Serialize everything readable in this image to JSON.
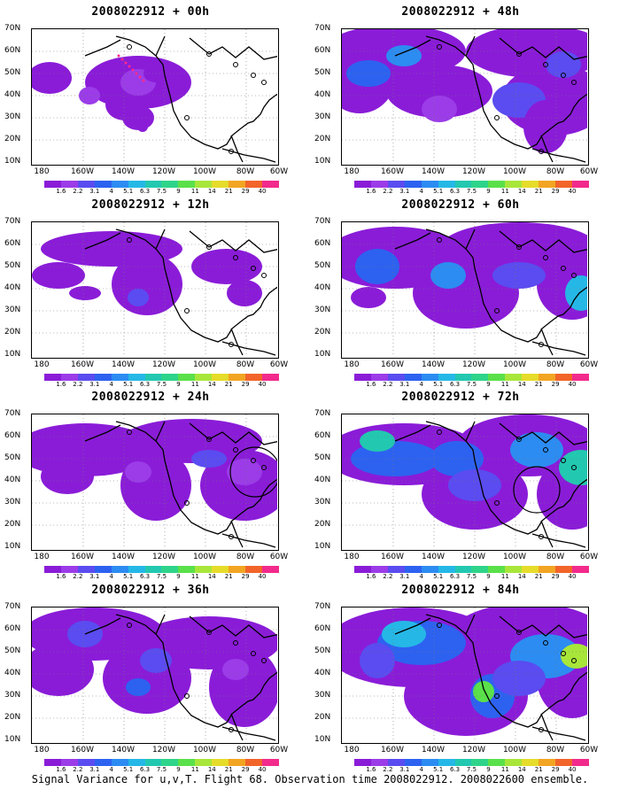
{
  "panels": [
    {
      "id": "p00",
      "title": "2008022912 + 00h"
    },
    {
      "id": "p48",
      "title": "2008022912 + 48h"
    },
    {
      "id": "p12",
      "title": "2008022912 + 12h"
    },
    {
      "id": "p60",
      "title": "2008022912 + 60h"
    },
    {
      "id": "p24",
      "title": "2008022912 + 24h"
    },
    {
      "id": "p72",
      "title": "2008022912 + 72h"
    },
    {
      "id": "p36",
      "title": "2008022912 + 36h"
    },
    {
      "id": "p84",
      "title": "2008022912 + 84h"
    }
  ],
  "lat_labels": [
    "70N",
    "60N",
    "50N",
    "40N",
    "30N",
    "20N",
    "10N"
  ],
  "lon_labels": [
    "180",
    "160W",
    "140W",
    "120W",
    "100W",
    "80W",
    "60W"
  ],
  "colorbar_labels": [
    "1.6",
    "2.2",
    "3.1",
    "4",
    "5.1",
    "6.3",
    "7.5",
    "9",
    "11",
    "14",
    "21",
    "29",
    "40"
  ],
  "colorbar_colors": [
    "#8a1cd8",
    "#9b3ce8",
    "#5a4cf0",
    "#2d62f0",
    "#2c8cf2",
    "#25b8e6",
    "#22c8b0",
    "#2ed48a",
    "#5ae04a",
    "#a8e63a",
    "#e6dc2a",
    "#f2a522",
    "#f2642a",
    "#f22a8c"
  ],
  "footer": "Signal Variance for u,v,T. Flight 68. Observation time 2008022912. 2008022600 ensemble."
}
